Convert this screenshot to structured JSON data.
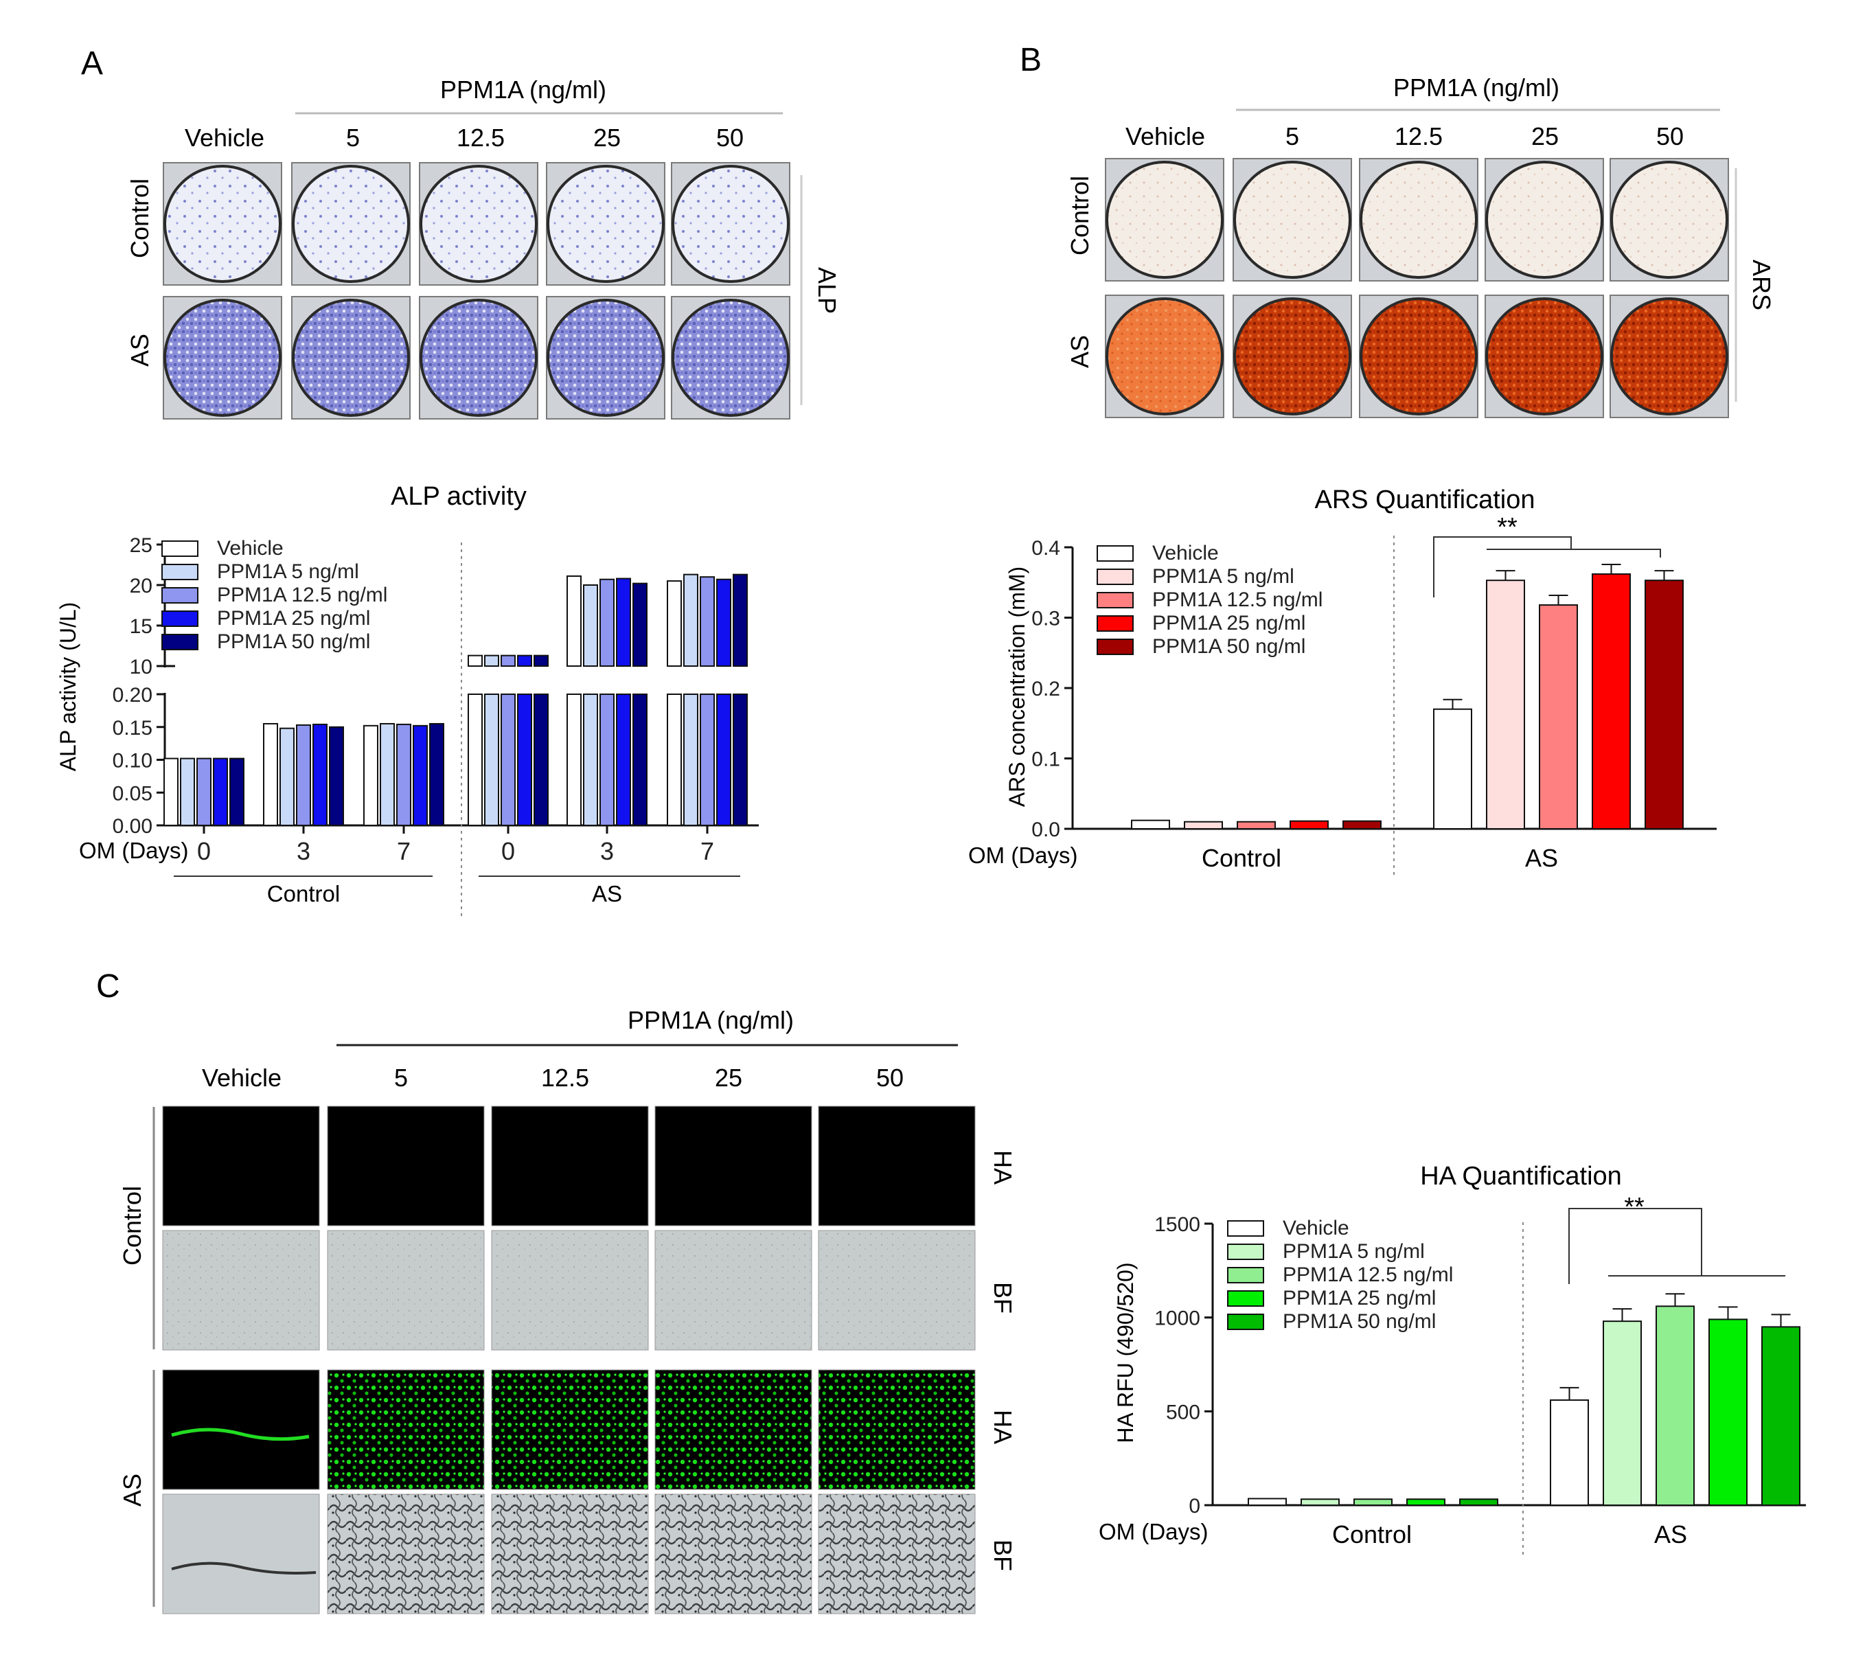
{
  "panels": {
    "A": {
      "letter": "A",
      "header": "PPM1A  (ng/ml)",
      "columns": [
        "Vehicle",
        "5",
        "12.5",
        "25",
        "50"
      ],
      "rows": [
        "Control",
        "AS"
      ],
      "stain": "ALP"
    },
    "B": {
      "letter": "B",
      "header": "PPM1A  (ng/ml)",
      "columns": [
        "Vehicle",
        "5",
        "12.5",
        "25",
        "50"
      ],
      "rows": [
        "Control",
        "AS"
      ],
      "stain": "ARS"
    },
    "C": {
      "letter": "C",
      "header": "PPM1A  (ng/ml)",
      "columns": [
        "Vehicle",
        "5",
        "12.5",
        "25",
        "50"
      ],
      "groups": [
        "Control",
        "AS"
      ],
      "channels": [
        "HA",
        "BF",
        "HA",
        "BF"
      ]
    }
  },
  "colors": {
    "alp": [
      "#ffffff",
      "#c9daf8",
      "#8e96f0",
      "#1010f0",
      "#000080"
    ],
    "ars": [
      "#ffffff",
      "#ffdede",
      "#ff8080",
      "#ff0000",
      "#a00000"
    ],
    "ha": [
      "#ffffff",
      "#c6f9c6",
      "#90ee90",
      "#00ee00",
      "#00bb00"
    ],
    "alp_plate": "#8b8fd9",
    "ars_plate": "#c83200"
  },
  "chart_data": [
    {
      "type": "bar",
      "title": "ALP activity",
      "ylabel": "ALP activity (U/L)",
      "xlabel": "OM (Days)",
      "categories": [
        "0",
        "3",
        "7",
        "0",
        "3",
        "7"
      ],
      "groups": [
        "Control",
        "AS"
      ],
      "ylim_lower": [
        0,
        0.2
      ],
      "ylim_upper": [
        10,
        25
      ],
      "yticks_lower": [
        "0.00",
        "0.05",
        "0.10",
        "0.15",
        "0.20"
      ],
      "yticks_upper": [
        "10",
        "15",
        "20",
        "25"
      ],
      "legend_position": "top-left",
      "series": [
        {
          "name": "Vehicle",
          "values": [
            0.102,
            0.155,
            0.152,
            11.3,
            21.1,
            20.5
          ]
        },
        {
          "name": "PPM1A 5 ng/ml",
          "values": [
            0.102,
            0.148,
            0.155,
            11.3,
            20.0,
            21.3
          ]
        },
        {
          "name": "PPM1A 12.5 ng/ml",
          "values": [
            0.102,
            0.153,
            0.154,
            11.3,
            20.7,
            21.0
          ]
        },
        {
          "name": "PPM1A 25 ng/ml",
          "values": [
            0.102,
            0.154,
            0.152,
            11.3,
            20.8,
            20.7
          ]
        },
        {
          "name": "PPM1A 50 ng/ml",
          "values": [
            0.102,
            0.15,
            0.155,
            11.3,
            20.2,
            21.3
          ]
        }
      ]
    },
    {
      "type": "bar",
      "title": "ARS Quantification",
      "ylabel": "ARS concentration (mM)",
      "xlabel": "OM (Days)",
      "categories": [
        "Control",
        "AS"
      ],
      "ylim": [
        0,
        0.4
      ],
      "yticks": [
        "0.0",
        "0.1",
        "0.2",
        "0.3",
        "0.4"
      ],
      "significance": "**",
      "legend_position": "top-left",
      "series": [
        {
          "name": "Vehicle",
          "values": [
            0.012,
            0.17
          ]
        },
        {
          "name": "PPM1A 5 ng/ml",
          "values": [
            0.01,
            0.353
          ]
        },
        {
          "name": "PPM1A 12.5 ng/ml",
          "values": [
            0.01,
            0.318
          ]
        },
        {
          "name": "PPM1A 25 ng/ml",
          "values": [
            0.011,
            0.362
          ]
        },
        {
          "name": "PPM1A 50 ng/ml",
          "values": [
            0.011,
            0.353
          ]
        }
      ]
    },
    {
      "type": "bar",
      "title": "HA Quantification",
      "ylabel": "HA RFU (490/520)",
      "xlabel": "OM (Days)",
      "categories": [
        "Control",
        "AS"
      ],
      "ylim": [
        0,
        1500
      ],
      "yticks": [
        "0",
        "500",
        "1000",
        "1500"
      ],
      "significance": "**",
      "legend_position": "top-left",
      "series": [
        {
          "name": "Vehicle",
          "values": [
            35,
            560
          ]
        },
        {
          "name": "PPM1A 5 ng/ml",
          "values": [
            32,
            980
          ]
        },
        {
          "name": "PPM1A 12.5 ng/ml",
          "values": [
            32,
            1060
          ]
        },
        {
          "name": "PPM1A 25 ng/ml",
          "values": [
            32,
            990
          ]
        },
        {
          "name": "PPM1A 50 ng/ml",
          "values": [
            32,
            950
          ]
        }
      ]
    }
  ]
}
